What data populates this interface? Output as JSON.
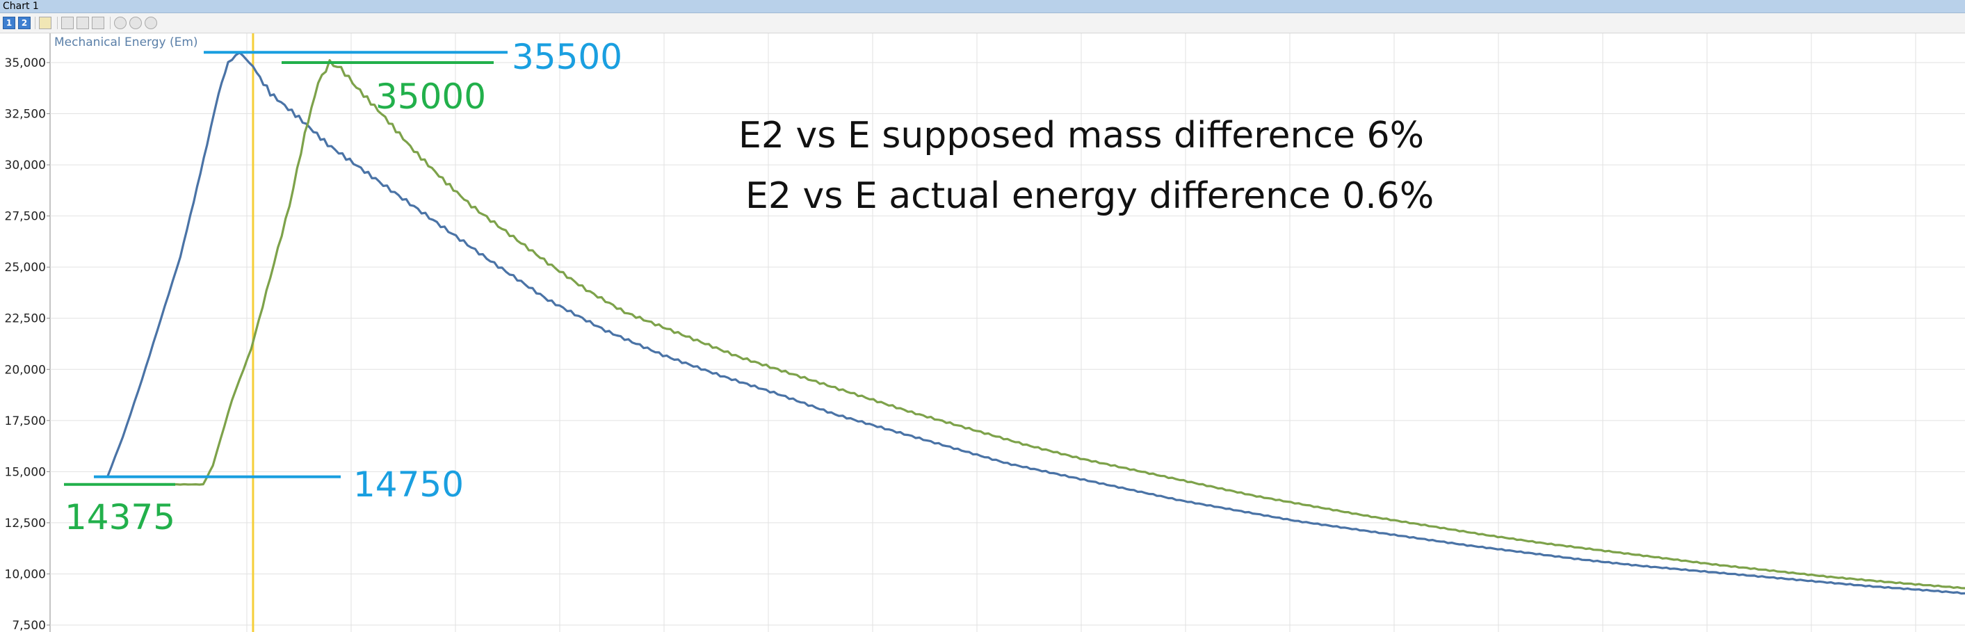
{
  "window": {
    "title": "Chart 1"
  },
  "toolbar": {
    "buttons": [
      {
        "name": "series-1-button",
        "label": "1"
      },
      {
        "name": "series-2-button",
        "label": "2"
      },
      {
        "name": "pen-tool-icon",
        "label": ""
      },
      {
        "name": "zoom-box-icon",
        "label": ""
      },
      {
        "name": "zoom-x-icon",
        "label": ""
      },
      {
        "name": "zoom-y-icon",
        "label": ""
      },
      {
        "name": "magnifier-icon",
        "label": ""
      },
      {
        "name": "zoom-out-icon",
        "label": ""
      },
      {
        "name": "zoom-in-icon",
        "label": ""
      }
    ]
  },
  "chart_data": {
    "type": "line",
    "title": "",
    "series_label": "Mechanical Energy (Em)",
    "xlabel": "",
    "ylabel": "",
    "ylim": [
      7500,
      36000
    ],
    "xlim": [
      0,
      1000
    ],
    "yticks": [
      "7,500",
      "10,000",
      "12,500",
      "15,000",
      "17,500",
      "20,000",
      "22,500",
      "25,000",
      "27,500",
      "30,000",
      "32,500",
      "35,000"
    ],
    "ytick_values": [
      7500,
      10000,
      12500,
      15000,
      17500,
      20000,
      22500,
      25000,
      27500,
      30000,
      32500,
      35000
    ],
    "grid": true,
    "cursor_x": 106,
    "series": [
      {
        "color": "#4a73a6",
        "points": [
          [
            30,
            14750
          ],
          [
            38,
            16700
          ],
          [
            48,
            19500
          ],
          [
            58,
            22500
          ],
          [
            68,
            25500
          ],
          [
            75,
            28200
          ],
          [
            82,
            31000
          ],
          [
            88,
            33500
          ],
          [
            93,
            35000
          ],
          [
            99,
            35500
          ],
          [
            106,
            34800
          ],
          [
            115,
            33500
          ],
          [
            130,
            32300
          ],
          [
            145,
            31000
          ],
          [
            170,
            29300
          ],
          [
            200,
            27300
          ],
          [
            230,
            25300
          ],
          [
            260,
            23400
          ],
          [
            290,
            21900
          ],
          [
            320,
            20700
          ],
          [
            350,
            19700
          ],
          [
            380,
            18800
          ],
          [
            410,
            17800
          ],
          [
            440,
            17000
          ],
          [
            470,
            16200
          ],
          [
            500,
            15400
          ],
          [
            530,
            14800
          ],
          [
            560,
            14200
          ],
          [
            590,
            13600
          ],
          [
            620,
            13100
          ],
          [
            650,
            12600
          ],
          [
            680,
            12200
          ],
          [
            710,
            11800
          ],
          [
            740,
            11400
          ],
          [
            770,
            11050
          ],
          [
            800,
            10700
          ],
          [
            830,
            10400
          ],
          [
            860,
            10150
          ],
          [
            890,
            9900
          ],
          [
            920,
            9650
          ],
          [
            950,
            9400
          ],
          [
            980,
            9200
          ],
          [
            1000,
            9050
          ]
        ]
      },
      {
        "color": "#7da24a",
        "points": [
          [
            60,
            14375
          ],
          [
            70,
            14375
          ],
          [
            80,
            14375
          ],
          [
            85,
            15300
          ],
          [
            95,
            18500
          ],
          [
            105,
            21000
          ],
          [
            115,
            24500
          ],
          [
            125,
            28000
          ],
          [
            133,
            31500
          ],
          [
            140,
            34000
          ],
          [
            146,
            35000
          ],
          [
            152,
            34700
          ],
          [
            160,
            33800
          ],
          [
            175,
            32300
          ],
          [
            190,
            30700
          ],
          [
            205,
            29300
          ],
          [
            220,
            28000
          ],
          [
            240,
            26600
          ],
          [
            260,
            25200
          ],
          [
            280,
            23900
          ],
          [
            300,
            22800
          ],
          [
            330,
            21700
          ],
          [
            360,
            20600
          ],
          [
            390,
            19700
          ],
          [
            420,
            18800
          ],
          [
            450,
            17900
          ],
          [
            480,
            17100
          ],
          [
            510,
            16300
          ],
          [
            540,
            15600
          ],
          [
            570,
            15000
          ],
          [
            600,
            14400
          ],
          [
            630,
            13800
          ],
          [
            660,
            13300
          ],
          [
            690,
            12800
          ],
          [
            720,
            12350
          ],
          [
            750,
            11900
          ],
          [
            780,
            11500
          ],
          [
            810,
            11150
          ],
          [
            840,
            10800
          ],
          [
            870,
            10450
          ],
          [
            900,
            10150
          ],
          [
            930,
            9850
          ],
          [
            960,
            9600
          ],
          [
            1000,
            9300
          ]
        ]
      }
    ],
    "annotations": [
      {
        "text": "35500",
        "color": "#1a9fe0"
      },
      {
        "text": "35000",
        "color": "#22b04b"
      },
      {
        "text": "14750",
        "color": "#1a9fe0"
      },
      {
        "text": "14375",
        "color": "#22b04b"
      },
      {
        "text": "E2 vs E supposed mass difference 6%",
        "color": "#111111"
      },
      {
        "text": "E2 vs E actual energy difference  0.6%",
        "color": "#111111"
      }
    ]
  }
}
